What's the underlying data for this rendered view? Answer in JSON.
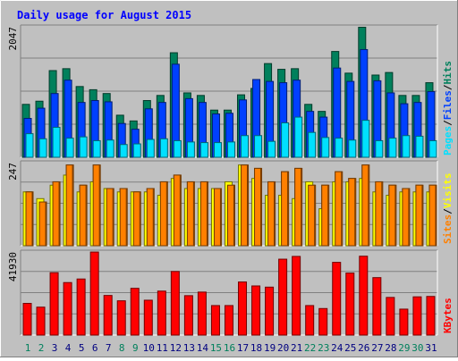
{
  "title": "Daily usage for August 2015",
  "colors": {
    "background": "#c0c0c0",
    "title_text": "#0000ff",
    "hits": "#00805c",
    "files": "#0040ff",
    "pages": "#00e0ff",
    "visits": "#ffff00",
    "sites": "#ff8000",
    "kbytes": "#ff0000",
    "weekday_label": "#000080",
    "weekend_label": "#00805c"
  },
  "chart_data": [
    {
      "type": "bar",
      "title": "Daily usage for August 2015",
      "categories": [
        "1",
        "2",
        "3",
        "4",
        "5",
        "6",
        "7",
        "8",
        "9",
        "10",
        "11",
        "12",
        "13",
        "14",
        "15",
        "16",
        "17",
        "18",
        "19",
        "20",
        "21",
        "22",
        "23",
        "24",
        "25",
        "26",
        "27",
        "28",
        "29",
        "30",
        "31"
      ],
      "weekend_days": [
        "1",
        "2",
        "8",
        "9",
        "15",
        "16",
        "22",
        "23",
        "29",
        "30"
      ],
      "ymax_label": "2047",
      "ylabel": {
        "pages": "Pages",
        "files": "Files",
        "hits": "Hits",
        "sep": "/"
      },
      "series": [
        {
          "name": "Hits",
          "values": [
            830,
            880,
            1360,
            1390,
            1110,
            1060,
            1000,
            660,
            570,
            890,
            970,
            1640,
            1010,
            970,
            740,
            740,
            980,
            1080,
            1470,
            1380,
            1390,
            830,
            720,
            1660,
            1320,
            2040,
            1290,
            1330,
            970,
            970,
            1170
          ]
        },
        {
          "name": "Files",
          "values": [
            610,
            770,
            1000,
            1210,
            860,
            890,
            870,
            530,
            440,
            760,
            860,
            1460,
            920,
            860,
            680,
            690,
            900,
            1220,
            1190,
            1170,
            1210,
            720,
            630,
            1400,
            1190,
            1690,
            1200,
            1010,
            840,
            860,
            1030
          ]
        },
        {
          "name": "Pages",
          "values": [
            370,
            290,
            470,
            300,
            320,
            260,
            270,
            200,
            210,
            280,
            290,
            260,
            240,
            230,
            230,
            240,
            340,
            340,
            250,
            540,
            630,
            390,
            310,
            300,
            270,
            580,
            260,
            300,
            340,
            330,
            260
          ]
        }
      ]
    },
    {
      "type": "bar",
      "ymax_label": "247",
      "ylabel": {
        "sites": "Sites",
        "visits": "Visits",
        "sep": "/"
      },
      "series": [
        {
          "name": "Visits",
          "values": [
            160,
            140,
            180,
            210,
            160,
            190,
            170,
            160,
            160,
            160,
            150,
            200,
            170,
            170,
            170,
            190,
            240,
            200,
            150,
            150,
            140,
            190,
            110,
            190,
            190,
            200,
            160,
            150,
            160,
            160,
            160
          ]
        },
        {
          "name": "Sites",
          "values": [
            160,
            130,
            190,
            240,
            180,
            240,
            170,
            170,
            160,
            170,
            190,
            210,
            190,
            190,
            170,
            180,
            240,
            230,
            190,
            220,
            230,
            180,
            180,
            220,
            200,
            240,
            190,
            180,
            170,
            180,
            180
          ]
        }
      ]
    },
    {
      "type": "bar",
      "ymax_label": "41930",
      "ylabel": "KBytes",
      "series": [
        {
          "name": "KBytes",
          "values": [
            16000,
            14100,
            31500,
            26500,
            28300,
            41900,
            20000,
            17300,
            23600,
            17600,
            22200,
            32100,
            19900,
            21700,
            14900,
            14900,
            26800,
            24800,
            24200,
            38300,
            39700,
            14900,
            13400,
            36700,
            31300,
            39800,
            29000,
            19000,
            13100,
            19300,
            19500
          ]
        }
      ]
    }
  ]
}
